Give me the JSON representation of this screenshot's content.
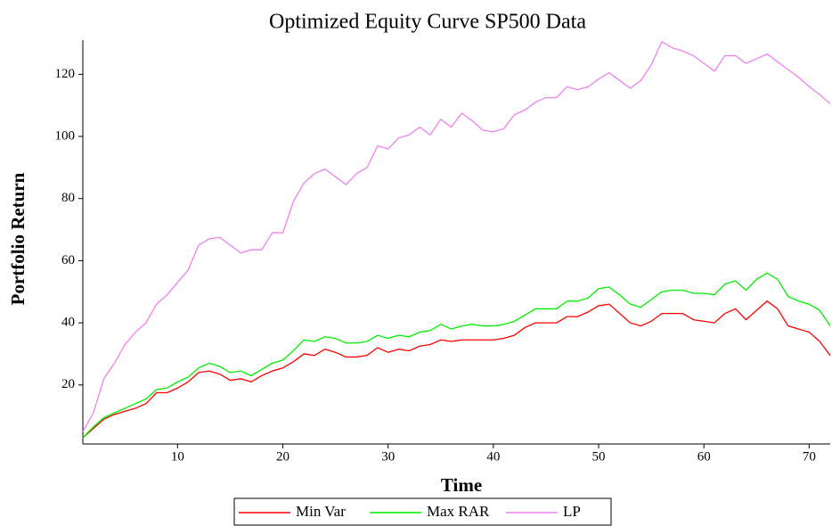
{
  "chart_data": {
    "type": "line",
    "title": "Optimized Equity Curve SP500 Data",
    "x_label": "Time",
    "y_label": "Portfolio Return",
    "x": [
      1,
      2,
      3,
      4,
      5,
      6,
      7,
      8,
      9,
      10,
      11,
      12,
      13,
      14,
      15,
      16,
      17,
      18,
      19,
      20,
      21,
      22,
      23,
      24,
      25,
      26,
      27,
      28,
      29,
      30,
      31,
      32,
      33,
      34,
      35,
      36,
      37,
      38,
      39,
      40,
      41,
      42,
      43,
      44,
      45,
      46,
      47,
      48,
      49,
      50,
      51,
      52,
      53,
      54,
      55,
      56,
      57,
      58,
      59,
      60,
      61,
      62,
      63,
      64,
      65,
      66,
      67,
      68,
      69,
      70,
      71,
      72
    ],
    "series": [
      {
        "name": "Min Var",
        "color": "#ff0000",
        "values": [
          3,
          6,
          9,
          10.5,
          11.5,
          12.5,
          14,
          17.5,
          17.5,
          19,
          21,
          24,
          24.5,
          23.5,
          21.5,
          22,
          21,
          23,
          24.5,
          25.5,
          27.5,
          30,
          29.5,
          31.5,
          30.5,
          29,
          29,
          29.5,
          32,
          30.5,
          31.5,
          31,
          32.5,
          33,
          34.5,
          34,
          34.5,
          34.5,
          34.5,
          34.5,
          35,
          36,
          38.5,
          40,
          40,
          40,
          42,
          42,
          43.5,
          45.5,
          46,
          43,
          40,
          39,
          40.5,
          43,
          43,
          43,
          41,
          40.5,
          40,
          43,
          44.5,
          41,
          44,
          47,
          44.5,
          39,
          38,
          37,
          34,
          29.5
        ]
      },
      {
        "name": "Max RAR",
        "color": "#00ee00",
        "values": [
          3,
          6.5,
          9.5,
          11,
          12.5,
          14,
          15.5,
          18.5,
          19,
          21,
          22.5,
          25.5,
          27,
          26,
          24,
          24.5,
          23,
          25,
          27,
          28,
          31,
          34.5,
          34,
          35.5,
          35,
          33.5,
          33.5,
          34,
          36,
          35,
          36,
          35.5,
          37,
          37.5,
          39.5,
          38,
          39,
          39.5,
          39,
          39,
          39.5,
          40.5,
          42.5,
          44.5,
          44.5,
          44.5,
          47,
          47,
          48,
          51,
          51.5,
          49,
          46,
          45,
          47.5,
          50,
          50.5,
          50.5,
          49.5,
          49.5,
          49,
          52.5,
          53.5,
          50.5,
          54,
          56,
          54,
          48.5,
          47,
          46,
          44,
          39
        ]
      },
      {
        "name": "LP",
        "color": "#ee82ee",
        "values": [
          5,
          11,
          22,
          27,
          33,
          37,
          40,
          46,
          49,
          53,
          57,
          65,
          67,
          67.5,
          65,
          62.5,
          63.5,
          63.5,
          69,
          69,
          79,
          85,
          88,
          89.5,
          87,
          84.5,
          88,
          90,
          97,
          96,
          99.5,
          100.5,
          103,
          100.5,
          105.5,
          103,
          107.5,
          105,
          102,
          101.5,
          102.5,
          107,
          108.5,
          111,
          112.5,
          112.5,
          116,
          115,
          116,
          118.5,
          120.5,
          118,
          115.5,
          118,
          123,
          130.5,
          128.5,
          127.5,
          126,
          123.5,
          121,
          126,
          126,
          123.5,
          125,
          126.5,
          124,
          121.5,
          119,
          116,
          113.5,
          110.5
        ]
      }
    ],
    "xlim": [
      1,
      72
    ],
    "ylim": [
      1,
      131
    ],
    "xticks": [
      10,
      20,
      30,
      40,
      50,
      60,
      70
    ],
    "yticks": [
      20,
      40,
      60,
      80,
      100,
      120
    ],
    "legend": "bottom"
  }
}
